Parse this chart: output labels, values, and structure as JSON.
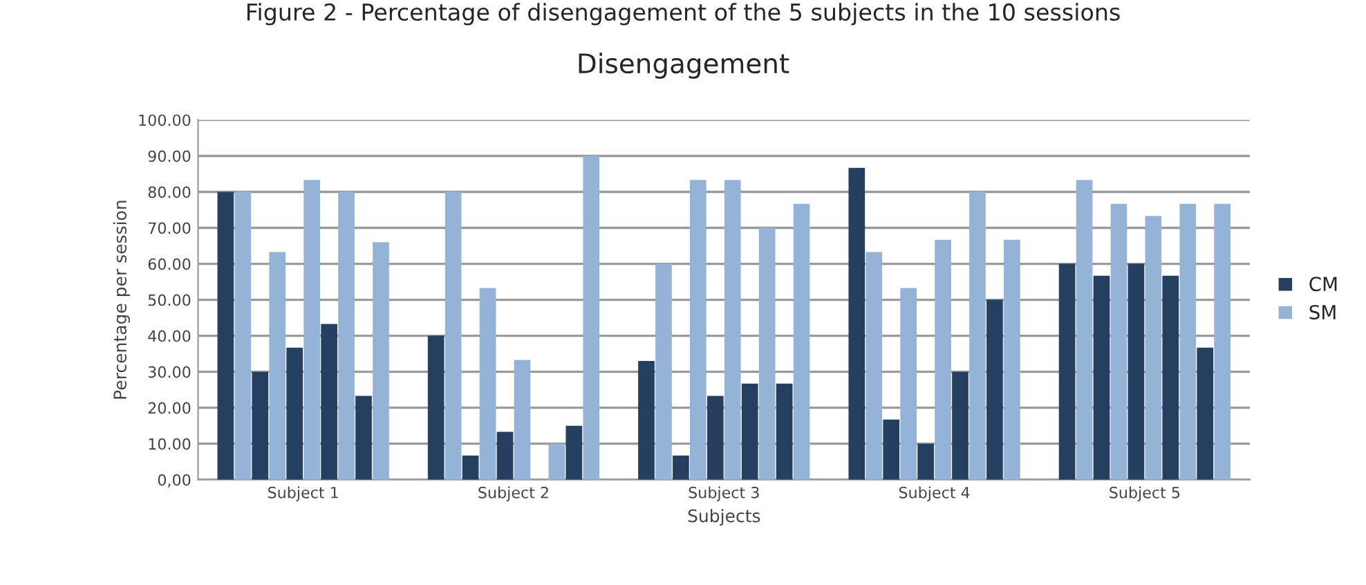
{
  "chart_data": {
    "type": "bar",
    "title": "Figure 2 - Percentage of disengagement of the 5 subjects in the 10 sessions",
    "subtitle": "Disengagement",
    "xlabel": "Subjects",
    "ylabel": "Percentage per session",
    "categories": [
      "Subject 1",
      "Subject 2",
      "Subject 3",
      "Subject 4",
      "Subject 5"
    ],
    "series": [
      {
        "name": "CM",
        "color": "#243f60",
        "values": [
          80,
          40,
          33,
          86.7,
          60
        ]
      },
      {
        "name": "SM",
        "color": "#95b3d7",
        "values": [
          80,
          80,
          60,
          63.3,
          83.3
        ]
      },
      {
        "color": "#243f60",
        "values": [
          30,
          6.7,
          6.7,
          16.7,
          56.7
        ]
      },
      {
        "color": "#95b3d7",
        "values": [
          63.3,
          53.3,
          83.3,
          53.3,
          76.7
        ]
      },
      {
        "color": "#243f60",
        "values": [
          36.7,
          13.3,
          23.3,
          10,
          60
        ]
      },
      {
        "color": "#95b3d7",
        "values": [
          83.3,
          33.3,
          83.3,
          66.7,
          73.3
        ]
      },
      {
        "color": "#243f60",
        "values": [
          43.3,
          null,
          26.7,
          30,
          56.7
        ]
      },
      {
        "color": "#95b3d7",
        "values": [
          80,
          10,
          70,
          80,
          76.7
        ]
      },
      {
        "color": "#243f60",
        "values": [
          23.3,
          15,
          26.7,
          50,
          36.7
        ]
      },
      {
        "color": "#95b3d7",
        "values": [
          66,
          90,
          76.7,
          66.7,
          76.7
        ]
      }
    ],
    "ylim": [
      0,
      100
    ],
    "yticks": [
      {
        "value": 0,
        "label": "0,00"
      },
      {
        "value": 10,
        "label": "10.00"
      },
      {
        "value": 20,
        "label": "20.00"
      },
      {
        "value": 30,
        "label": "30.00"
      },
      {
        "value": 40,
        "label": "40.00"
      },
      {
        "value": 50,
        "label": "50.00"
      },
      {
        "value": 60,
        "label": "60.00"
      },
      {
        "value": 70,
        "label": "70.00"
      },
      {
        "value": 80,
        "label": "80.00"
      },
      {
        "value": 90,
        "label": "90.00"
      },
      {
        "value": 100,
        "label": "100.00"
      }
    ],
    "grid": "y",
    "legend": "right"
  }
}
